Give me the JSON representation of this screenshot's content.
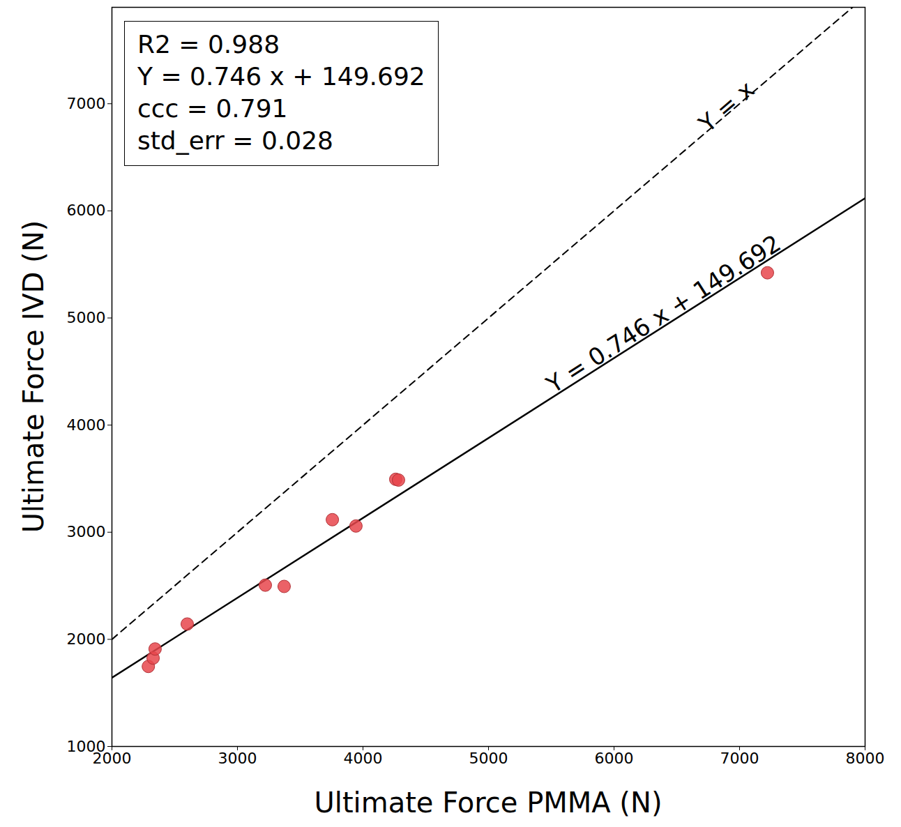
{
  "chart_data": {
    "type": "scatter",
    "x_label": "Ultimate Force PMMA (N)",
    "y_label": "Ultimate Force IVD (N)",
    "x": [
      2290,
      2328,
      2344,
      2600,
      3222,
      3372,
      3756,
      3944,
      4261,
      4283,
      7222
    ],
    "values": [
      1747,
      1825,
      1910,
      2143,
      2506,
      2494,
      3117,
      3058,
      3494,
      3487,
      5422
    ],
    "color": "#e8474c",
    "marker": "circle",
    "xlim": [
      2000,
      8000
    ],
    "ylim": [
      1000,
      7900
    ],
    "xticks": [
      2000,
      3000,
      4000,
      5000,
      6000,
      7000,
      8000
    ],
    "yticks": [
      1000,
      2000,
      3000,
      4000,
      5000,
      6000,
      7000
    ],
    "grid": false,
    "fit_line": {
      "slope": 0.746,
      "intercept": 149.692,
      "label": "Y = 0.746 x + 149.692",
      "line_style": "solid",
      "color": "#000000"
    },
    "identity_line": {
      "label": "Y = x",
      "line_style": "dashed",
      "color": "#000000"
    },
    "annotation_box": [
      "R2 = 0.988",
      "Y = 0.746 x + 149.692",
      "ccc = 0.791",
      "std_err = 0.028"
    ]
  }
}
